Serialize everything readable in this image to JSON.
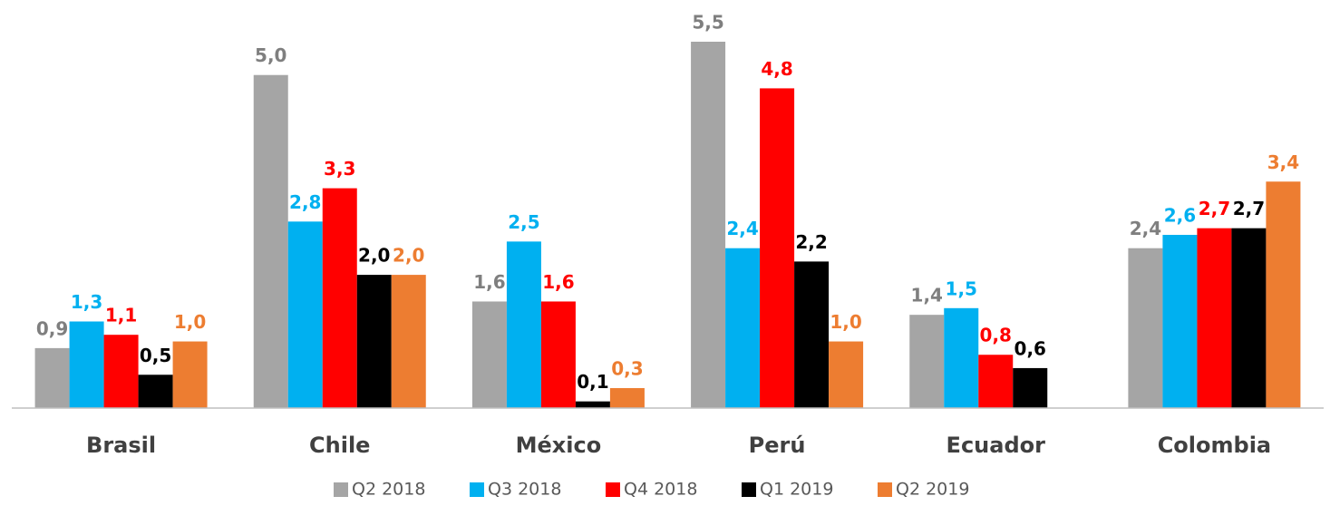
{
  "chart_data": {
    "type": "bar",
    "categories": [
      "Brasil",
      "Chile",
      "México",
      "Perú",
      "Ecuador",
      "Colombia"
    ],
    "series": [
      {
        "name": "Q2 2018",
        "color": "#a5a5a5",
        "values": [
          0.9,
          5.0,
          1.6,
          5.5,
          1.4,
          2.4
        ],
        "value_labels": [
          "0,9",
          "5,0",
          "1,6",
          "5,5",
          "1,4",
          "2,4"
        ]
      },
      {
        "name": "Q3 2018",
        "color": "#00b0f0",
        "values": [
          1.3,
          2.8,
          2.5,
          2.4,
          1.5,
          2.6
        ],
        "value_labels": [
          "1,3",
          "2,8",
          "2,5",
          "2,4",
          "1,5",
          "2,6"
        ]
      },
      {
        "name": "Q4 2018",
        "color": "#ff0000",
        "values": [
          1.1,
          3.3,
          1.6,
          4.8,
          0.8,
          2.7
        ],
        "value_labels": [
          "1,1",
          "3,3",
          "1,6",
          "4,8",
          "0,8",
          "2,7"
        ]
      },
      {
        "name": "Q1 2019",
        "color": "#000000",
        "values": [
          0.5,
          2.0,
          0.1,
          2.2,
          0.6,
          2.7
        ],
        "value_labels": [
          "0,5",
          "2,0",
          "0,1",
          "2,2",
          "0,6",
          "2,7"
        ]
      },
      {
        "name": "Q2 2019",
        "color": "#ed7d31",
        "values": [
          1.0,
          2.0,
          0.3,
          1.0,
          null,
          3.4
        ],
        "value_labels": [
          "1,0",
          "2,0",
          "0,3",
          "1,0",
          null,
          "3,4"
        ]
      }
    ],
    "ylim": [
      0,
      5.5
    ],
    "legend": "bottom"
  }
}
